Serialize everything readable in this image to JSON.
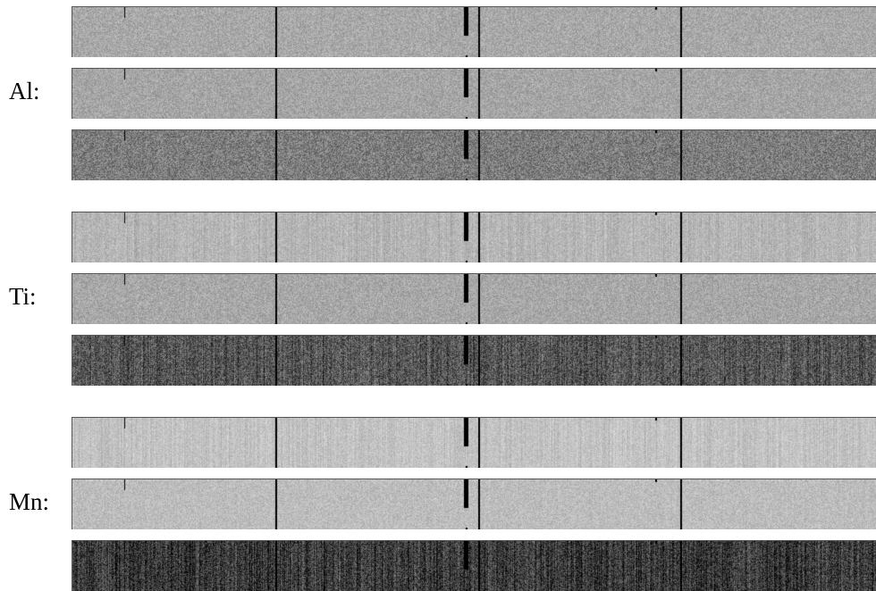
{
  "groups": [
    {
      "label": "Al:",
      "strips": [
        {
          "base": "#a9a9a9",
          "noise": 0.1,
          "streaks": 0.02
        },
        {
          "base": "#a6a6a6",
          "noise": 0.1,
          "streaks": 0.02
        },
        {
          "base": "#7e7e7e",
          "noise": 0.16,
          "streaks": 0.05
        }
      ]
    },
    {
      "label": "Ti:",
      "strips": [
        {
          "base": "#b7b7b7",
          "noise": 0.08,
          "streaks": 0.1
        },
        {
          "base": "#a8a8a8",
          "noise": 0.1,
          "streaks": 0.02
        },
        {
          "base": "#5a5a5a",
          "noise": 0.18,
          "streaks": 0.22
        }
      ]
    },
    {
      "label": "Mn:",
      "strips": [
        {
          "base": "#c4c4c4",
          "noise": 0.07,
          "streaks": 0.1
        },
        {
          "base": "#bdbdbd",
          "noise": 0.08,
          "streaks": 0.03
        },
        {
          "base": "#3f3f3f",
          "noise": 0.18,
          "streaks": 0.28
        }
      ]
    }
  ]
}
